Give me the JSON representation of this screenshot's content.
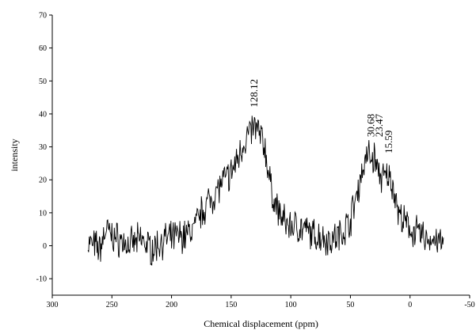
{
  "chart_data": {
    "type": "line",
    "title": "",
    "xlabel": "Chemical displacement (ppm)",
    "ylabel": "intensity",
    "xlim": [
      300,
      -50
    ],
    "ylim": [
      -15,
      70
    ],
    "x_reversed": true,
    "grid": false,
    "legend": "none",
    "xticks": [
      300,
      250,
      200,
      150,
      100,
      50,
      0,
      -50
    ],
    "yticks": [
      -10,
      0,
      10,
      20,
      30,
      40,
      50,
      60,
      70
    ],
    "line_color": "#000000",
    "annotations": [
      {
        "text": "128.12",
        "x": 128,
        "y": 42
      },
      {
        "text": "30.68",
        "x": 30,
        "y": 33
      },
      {
        "text": "23.47",
        "x": 23,
        "y": 33
      },
      {
        "text": "15.59",
        "x": 15,
        "y": 28
      }
    ],
    "series": [
      {
        "x": [
          270,
          265,
          260,
          255,
          250,
          245,
          240,
          235,
          230,
          225,
          220,
          215,
          210,
          205,
          200,
          195,
          190,
          185,
          180,
          175,
          170,
          165,
          160,
          155,
          150,
          145,
          140,
          135,
          130,
          128,
          125,
          122,
          120,
          118,
          115,
          110,
          105,
          100,
          95,
          90,
          85,
          80,
          75,
          70,
          65,
          60,
          55,
          50,
          45,
          40,
          35,
          32,
          30,
          28,
          26,
          24,
          22,
          20,
          18,
          15,
          12,
          10,
          5,
          0,
          -5,
          -10,
          -15,
          -20,
          -25,
          -28
        ],
        "y": [
          1,
          0,
          -1,
          5,
          3,
          2,
          1,
          0,
          1,
          2,
          0,
          -1,
          1,
          2,
          2,
          3,
          3,
          4,
          6,
          10,
          13,
          15,
          18,
          20,
          22,
          26,
          31,
          34,
          36,
          35,
          33,
          30,
          26,
          20,
          15,
          10,
          7,
          6,
          6,
          5,
          4,
          3,
          3,
          2,
          2,
          3,
          5,
          8,
          15,
          23,
          28,
          26,
          27,
          24,
          22,
          21,
          20,
          21,
          21,
          19,
          15,
          10,
          7,
          5,
          4,
          3,
          2,
          2,
          1,
          0
        ]
      }
    ]
  }
}
